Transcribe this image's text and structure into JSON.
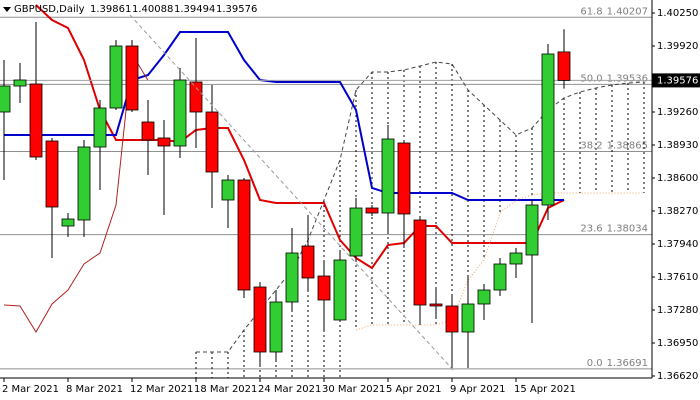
{
  "chart_data": {
    "type": "candlestick",
    "title": "GBPUSD,Daily",
    "categories": [
      "2 Mar 2021",
      null,
      null,
      null,
      "8 Mar 2021",
      null,
      null,
      null,
      "12 Mar 2021",
      null,
      null,
      null,
      "18 Mar 2021",
      null,
      null,
      null,
      "24 Mar 2021",
      null,
      null,
      null,
      "30 Mar 2021",
      null,
      null,
      null,
      "5 Apr 2021",
      null,
      null,
      null,
      "9 Apr 2021",
      null,
      null,
      null,
      "15 Apr 2021",
      null,
      null,
      null,
      null,
      null,
      null,
      null,
      null
    ],
    "open": [
      1.3926,
      1.3952,
      1.3954,
      1.3897,
      1.3812,
      1.3818,
      1.3891,
      1.393,
      1.3992,
      1.3916,
      1.39,
      1.3892,
      1.3956,
      1.3926,
      1.3838,
      1.3858,
      1.3751,
      1.3686,
      1.3736,
      1.3792,
      1.3762,
      1.3718,
      1.3782,
      1.383,
      1.3825,
      1.3895,
      1.3818,
      1.3734,
      1.3732,
      1.3706,
      1.3734,
      1.3748,
      1.3774,
      1.3783,
      1.3833,
      1.39861,
      null,
      null,
      null,
      null,
      null
    ],
    "high": [
      1.3978,
      1.3975,
      1.4016,
      1.39,
      1.3825,
      1.3898,
      1.3938,
      1.3998,
      1.3998,
      1.3938,
      1.3918,
      1.397,
      1.4,
      1.3953,
      1.3863,
      1.386,
      1.3756,
      1.3748,
      1.381,
      1.3823,
      1.3776,
      1.3788,
      1.384,
      1.3833,
      1.3913,
      1.3898,
      1.382,
      1.375,
      1.3742,
      1.3763,
      1.3754,
      1.378,
      1.379,
      1.3838,
      1.3994,
      1.40088,
      null,
      null,
      null,
      null,
      null
    ],
    "low": [
      1.3858,
      1.3935,
      1.3878,
      1.378,
      1.3801,
      1.3801,
      1.3848,
      1.3928,
      1.3926,
      1.3863,
      1.3823,
      1.388,
      1.389,
      1.383,
      1.381,
      1.374,
      1.3673,
      1.3676,
      1.3728,
      1.3748,
      1.3706,
      1.3716,
      1.3778,
      1.3822,
      1.3806,
      1.379,
      1.3713,
      1.372,
      1.367,
      1.367,
      1.3718,
      1.3742,
      1.376,
      1.3715,
      1.3818,
      1.39494,
      null,
      null,
      null,
      null,
      null
    ],
    "close": [
      1.3952,
      1.3958,
      1.3881,
      1.3831,
      1.3819,
      1.3891,
      1.393,
      1.3992,
      1.3928,
      1.3898,
      1.3892,
      1.3958,
      1.3926,
      1.3866,
      1.3858,
      1.3748,
      1.3686,
      1.3736,
      1.3785,
      1.376,
      1.3738,
      1.3778,
      1.383,
      1.3825,
      1.3899,
      1.3824,
      1.3733,
      1.3732,
      1.3706,
      1.3734,
      1.3748,
      1.3774,
      1.3785,
      1.3833,
      1.3984,
      1.39576,
      null,
      null,
      null,
      null,
      null
    ],
    "up_color": "#32cd32",
    "down_color": "#ff0000",
    "lines": [
      {
        "color": "#e00000",
        "style": "solid",
        "width": 2,
        "values": [
          null,
          null,
          1.4033,
          1.4018,
          1.401,
          1.3978,
          1.3928,
          1.3898,
          1.3898,
          1.3898,
          1.3898,
          1.3896,
          1.3908,
          1.391,
          1.391,
          1.3878,
          1.3838,
          1.3835,
          1.3835,
          1.3835,
          1.3835,
          1.3798,
          1.378,
          1.377,
          1.3793,
          1.3795,
          1.3812,
          1.3812,
          1.3795,
          1.3795,
          1.3795,
          1.3795,
          1.3795,
          1.3795,
          1.383,
          1.3838,
          null,
          null,
          null,
          null,
          null
        ]
      },
      {
        "color": "#0000cc",
        "style": "solid",
        "width": 2,
        "values": [
          1.3903,
          1.3903,
          1.3903,
          1.3903,
          1.3903,
          1.3903,
          1.3903,
          1.3903,
          1.3958,
          1.3963,
          1.3983,
          1.4006,
          1.4006,
          1.4006,
          1.4006,
          1.3978,
          1.3958,
          1.3956,
          1.3956,
          1.3956,
          1.3956,
          1.3956,
          1.3928,
          1.385,
          1.3845,
          1.3845,
          1.3845,
          1.3845,
          1.3845,
          1.3838,
          1.3838,
          1.3838,
          1.3838,
          1.3838,
          1.3838,
          1.3838,
          null,
          null,
          null,
          null,
          null
        ]
      },
      {
        "color": "#b22222",
        "style": "solid",
        "width": 1,
        "values": [
          1.3733,
          1.3732,
          1.3706,
          1.3734,
          1.3748,
          1.3774,
          1.3785,
          1.3833,
          1.3984,
          1.39576,
          null,
          null,
          null,
          null,
          null,
          null,
          null,
          null,
          null,
          null,
          null,
          null,
          null,
          null,
          null,
          null,
          null,
          null,
          null,
          null,
          null,
          null,
          null,
          null,
          null,
          null,
          null,
          null,
          null,
          null,
          null
        ]
      },
      {
        "color": "#444444",
        "style": "dashed",
        "width": 1,
        "values": [
          null,
          null,
          null,
          null,
          null,
          null,
          null,
          null,
          null,
          null,
          null,
          null,
          1.3686,
          1.3686,
          1.3686,
          1.3708,
          1.3728,
          1.3748,
          1.3768,
          1.3798,
          1.3838,
          1.3878,
          1.3948,
          1.3966,
          1.3966,
          1.3968,
          1.3972,
          1.3976,
          1.3974,
          1.3948,
          1.3933,
          1.3918,
          1.3903,
          1.391,
          1.3928,
          1.394,
          1.3946,
          1.395,
          1.3953,
          1.3955,
          1.3956
        ]
      },
      {
        "color": "#f4a460",
        "style": "dotted",
        "width": 1,
        "values": [
          null,
          null,
          null,
          null,
          null,
          null,
          null,
          null,
          null,
          null,
          null,
          null,
          null,
          null,
          null,
          null,
          null,
          null,
          null,
          null,
          null,
          null,
          1.3708,
          1.3713,
          1.3713,
          1.3713,
          1.3713,
          1.3713,
          1.3718,
          1.3758,
          1.3778,
          1.3825,
          1.3838,
          1.3843,
          1.3845,
          1.3845,
          1.3845,
          1.3845,
          1.3845,
          1.3845,
          1.3845
        ]
      }
    ],
    "fibo": [
      {
        "level": "61.8",
        "value": 1.40207
      },
      {
        "level": "50.0",
        "value": 1.39536
      },
      {
        "level": "38.2",
        "value": 1.38865
      },
      {
        "level": "23.6",
        "value": 1.38034
      },
      {
        "level": "0.0",
        "value": 1.36691
      }
    ],
    "ylim": [
      1.366,
      1.4038
    ],
    "yticks": [
      {
        "value": 1.4025,
        "label": "1.40250"
      },
      {
        "value": 1.3992,
        "label": "1.39920"
      },
      {
        "value": 1.3926,
        "label": "1.39260"
      },
      {
        "value": 1.3893,
        "label": "1.38930"
      },
      {
        "value": 1.386,
        "label": "1.38600"
      },
      {
        "value": 1.3827,
        "label": "1.38270"
      },
      {
        "value": 1.3794,
        "label": "1.37940"
      },
      {
        "value": 1.3761,
        "label": "1.37610"
      },
      {
        "value": 1.3728,
        "label": "1.37280"
      },
      {
        "value": 1.3695,
        "label": "1.36950"
      },
      {
        "value": 1.3662,
        "label": "1.36620"
      }
    ]
  }
}
